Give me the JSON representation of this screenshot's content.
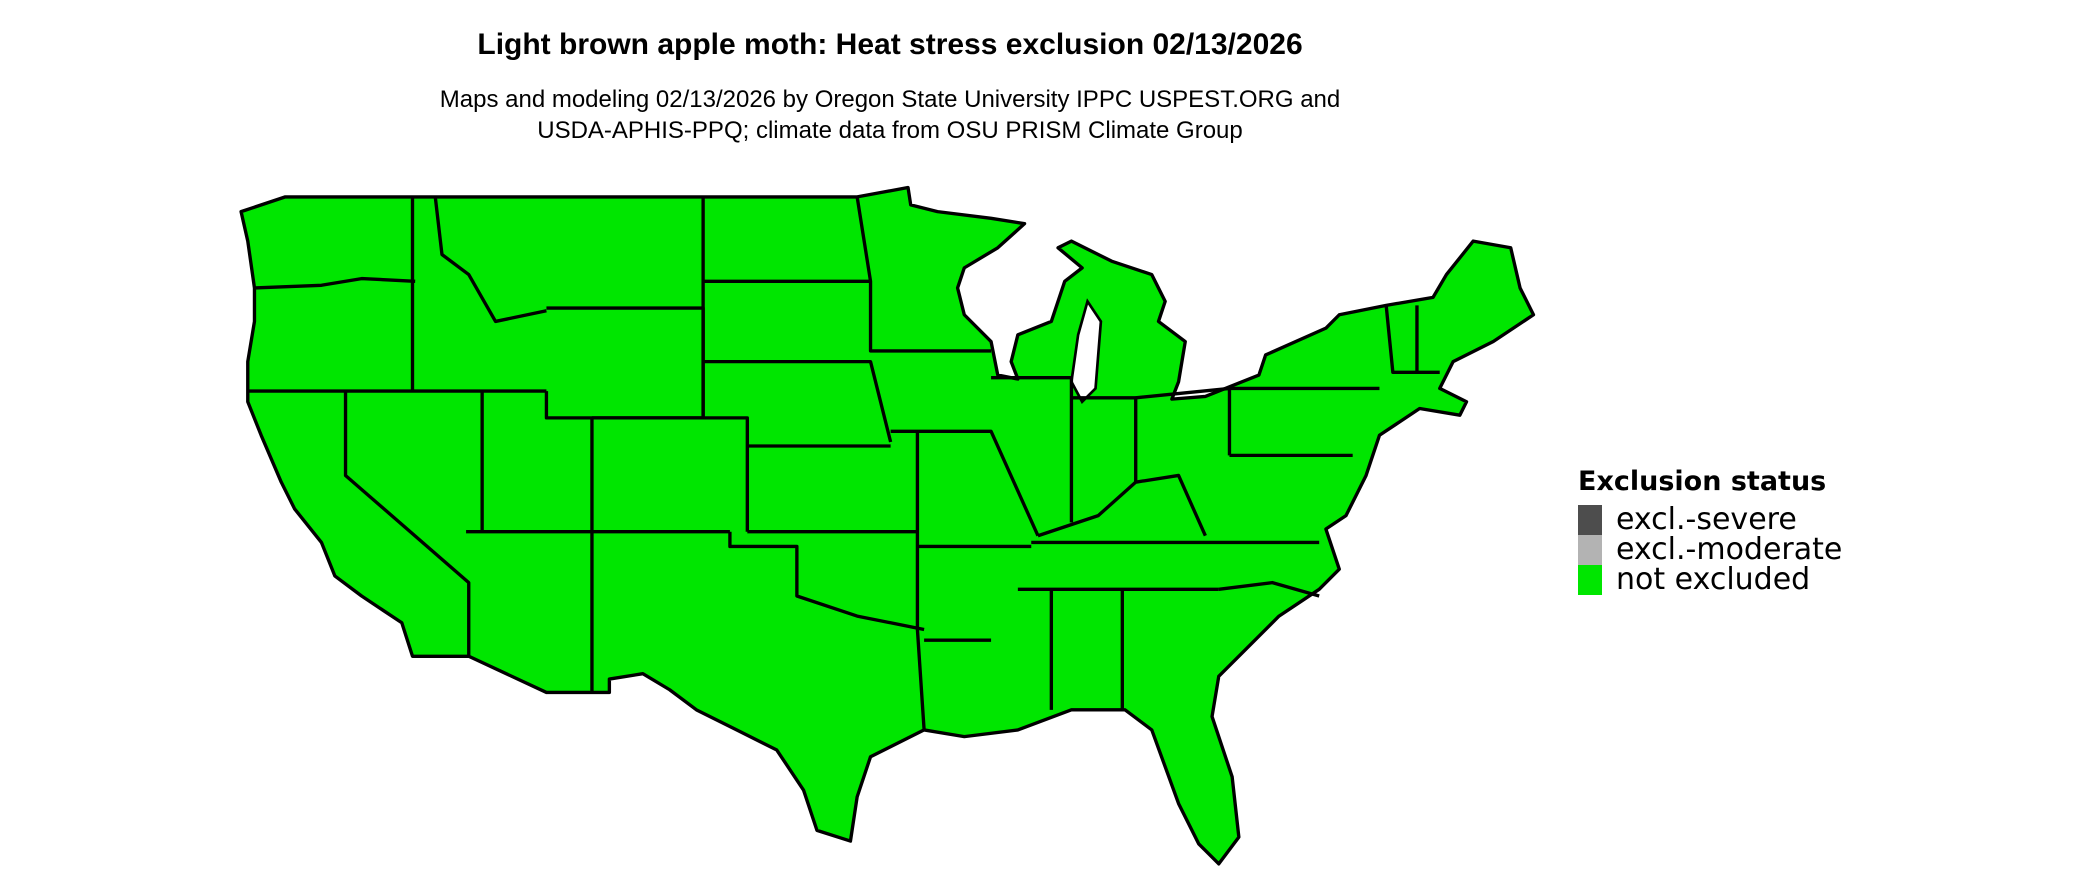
{
  "header": {
    "title": "Light brown apple moth: Heat stress exclusion 02/13/2026",
    "subtitle_line1": "Maps and modeling 02/13/2026 by Oregon State University IPPC USPEST.ORG and",
    "subtitle_line2": "USDA-APHIS-PPQ; climate data from OSU PRISM Climate Group"
  },
  "map": {
    "region": "Contiguous United States",
    "fill_status": "not excluded",
    "fill_color": "#00e600",
    "border_color": "#000000"
  },
  "legend": {
    "title": "Exclusion status",
    "items": [
      {
        "label": "excl.-severe",
        "color": "#4d4d4d"
      },
      {
        "label": "excl.-moderate",
        "color": "#b3b3b3"
      },
      {
        "label": "not excluded",
        "color": "#00e600"
      }
    ]
  }
}
